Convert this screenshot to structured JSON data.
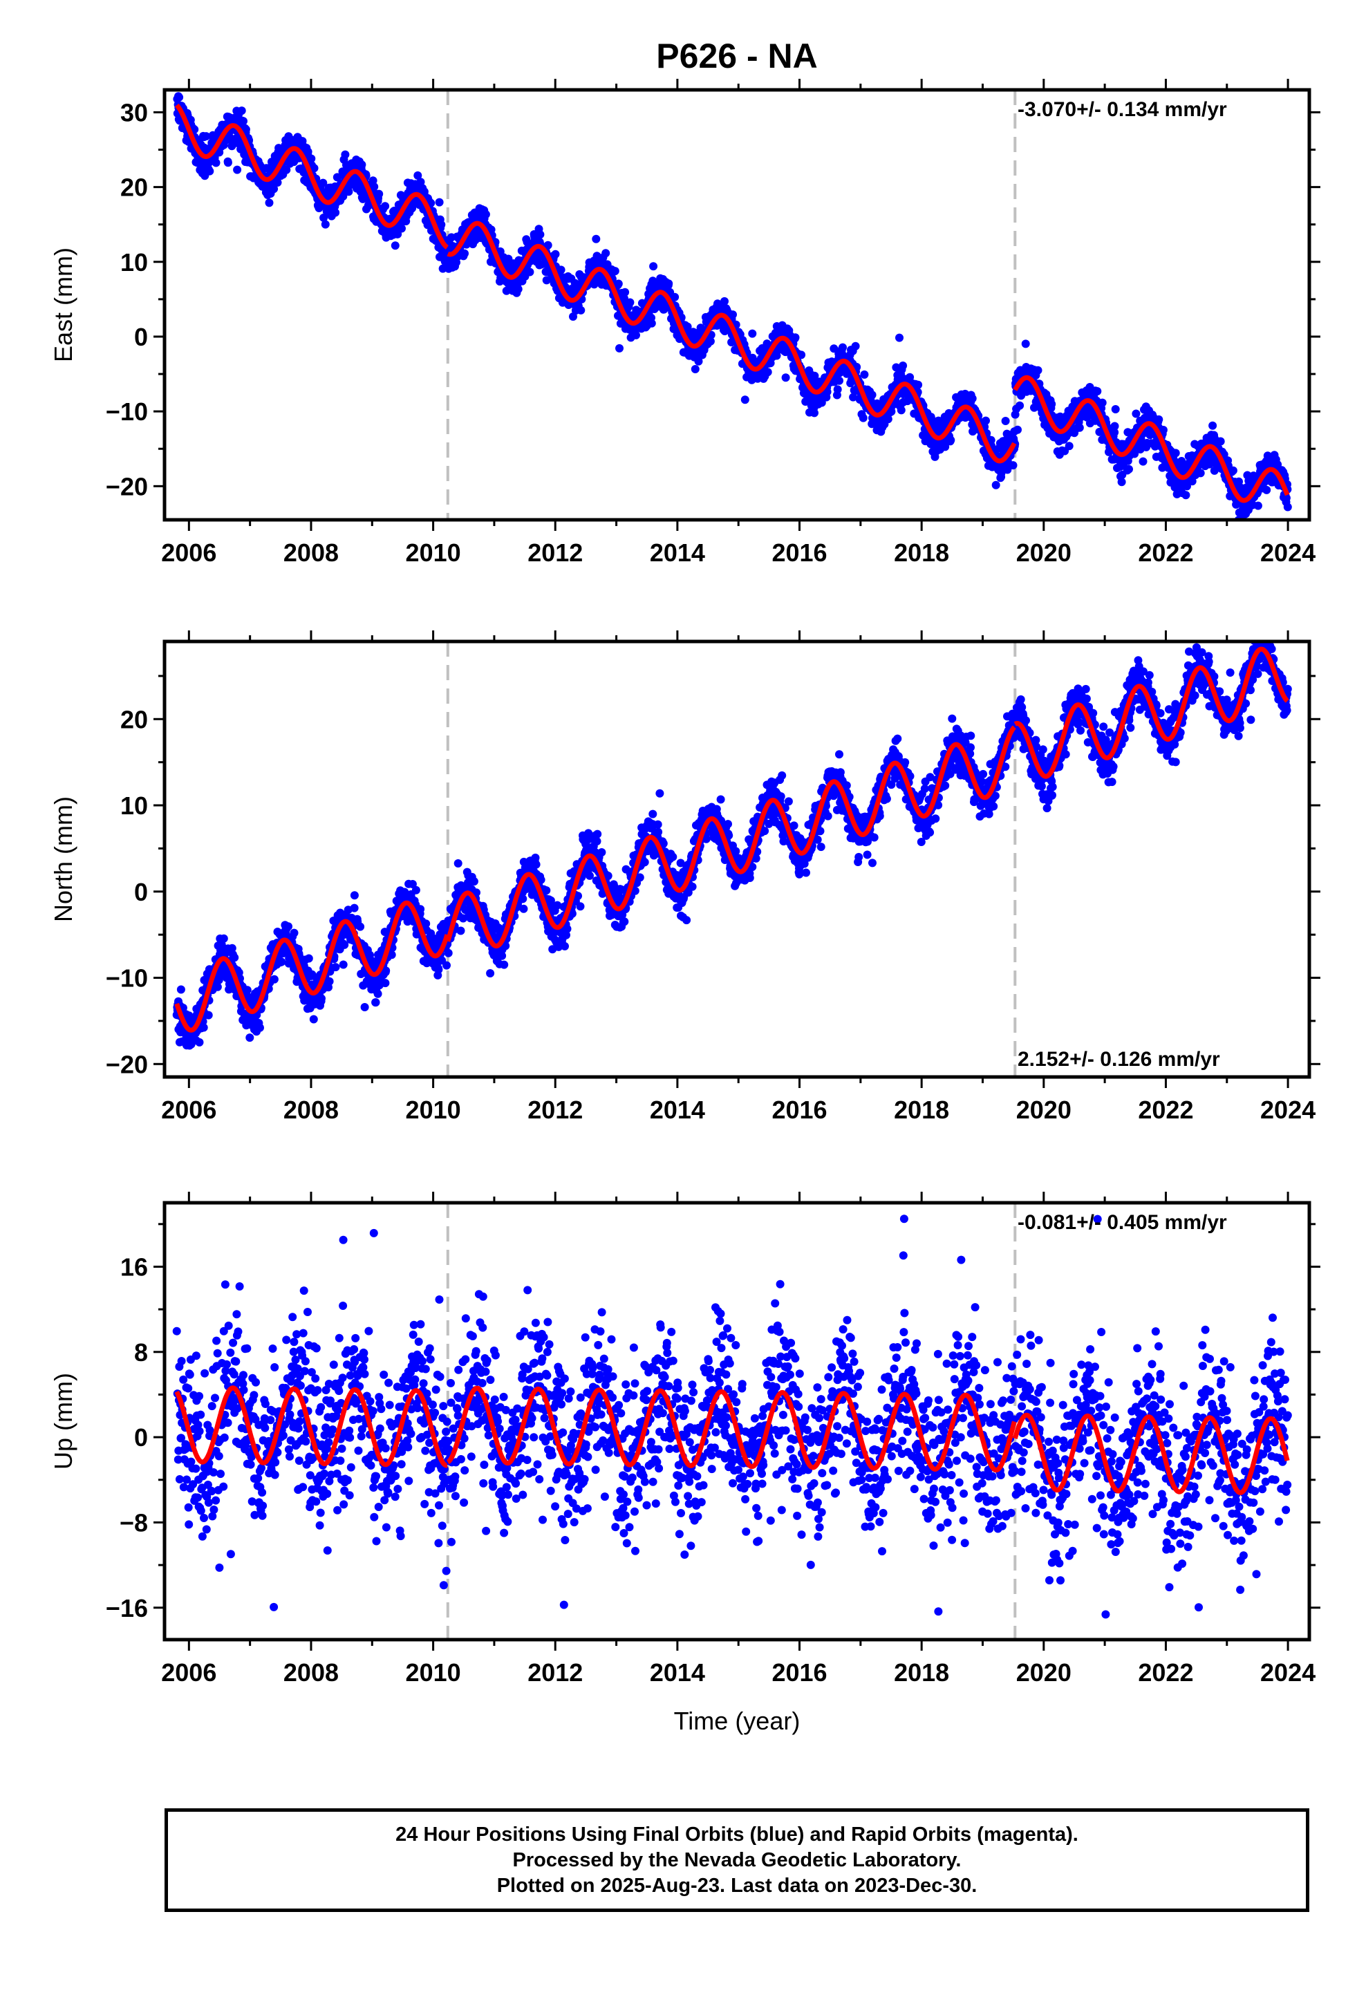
{
  "title": "P626 - NA",
  "colors": {
    "observations": "#0000ff",
    "model": "#ff0000",
    "offset_lines": "#c0c0c0"
  },
  "chart_data": [
    {
      "type": "scatter",
      "component": "east",
      "ylabel": "East (mm)",
      "xlabel": "",
      "xlim": [
        2005.6,
        2024.35
      ],
      "ylim": [
        -24.5,
        33
      ],
      "xticks": [
        2006,
        2008,
        2010,
        2012,
        2014,
        2016,
        2018,
        2020,
        2022,
        2024
      ],
      "yticks": [
        -20,
        -10,
        0,
        10,
        20,
        30
      ],
      "rate_label": "-3.070+/- 0.134 mm/yr",
      "rate_position": "top-right",
      "velocity": -3.07,
      "velocity_sigma": 0.134,
      "offset_years": [
        2010.24,
        2019.53
      ],
      "model": {
        "start": 2005.8,
        "end": 2024.0,
        "intercept_at_start": 28.3,
        "amplitude": 2.8,
        "phase_peak": 0.75,
        "offset_steps": [
          -0.8,
          7.0
        ],
        "noise_sd": 1.1
      },
      "series": [
        {
          "values_shown_as": "daily 24-hour positions (blue) with fitted model (red)"
        }
      ]
    },
    {
      "type": "scatter",
      "component": "north",
      "ylabel": "North (mm)",
      "xlabel": "",
      "xlim": [
        2005.6,
        2024.35
      ],
      "ylim": [
        -21.5,
        29
      ],
      "xticks": [
        2006,
        2008,
        2010,
        2012,
        2014,
        2016,
        2018,
        2020,
        2022,
        2024
      ],
      "yticks": [
        -20,
        -10,
        0,
        10,
        20
      ],
      "rate_label": "2.152+/- 0.126 mm/yr",
      "rate_position": "bottom-right",
      "velocity": 2.152,
      "velocity_sigma": 0.126,
      "offset_years": [
        2010.24,
        2019.53
      ],
      "model": {
        "start": 2005.8,
        "end": 2024.0,
        "intercept_at_start": -13.0,
        "amplitude": 3.6,
        "phase_peak": 0.55,
        "offset_steps": [
          -1.0,
          0.3
        ],
        "noise_sd": 1.2
      },
      "series": [
        {
          "values_shown_as": "daily 24-hour positions (blue) with fitted model (red)"
        }
      ]
    },
    {
      "type": "scatter",
      "component": "up",
      "ylabel": "Up (mm)",
      "xlabel": "Time (year)",
      "xlim": [
        2005.6,
        2024.35
      ],
      "ylim": [
        -19,
        22
      ],
      "xticks": [
        2006,
        2008,
        2010,
        2012,
        2014,
        2016,
        2018,
        2020,
        2022,
        2024
      ],
      "yticks": [
        -16,
        -8,
        0,
        8,
        16
      ],
      "rate_label": "-0.081+/- 0.405 mm/yr",
      "rate_position": "top-right",
      "velocity": -0.081,
      "velocity_sigma": 0.405,
      "offset_years": [
        2010.24,
        2019.53
      ],
      "model": {
        "start": 2005.8,
        "end": 2024.0,
        "intercept_at_start": 1.2,
        "amplitude": 3.5,
        "phase_peak": 0.72,
        "offset_steps": [
          0.3,
          -1.8
        ],
        "noise_sd": 3.8
      },
      "series": [
        {
          "values_shown_as": "daily 24-hour positions (blue) with fitted model (red)"
        }
      ]
    }
  ],
  "footer": {
    "line1": "24 Hour Positions Using Final Orbits (blue) and Rapid Orbits (magenta).",
    "line2": "Processed by the Nevada Geodetic Laboratory.",
    "line3": "Plotted on 2025-Aug-23. Last data on 2023-Dec-30."
  }
}
